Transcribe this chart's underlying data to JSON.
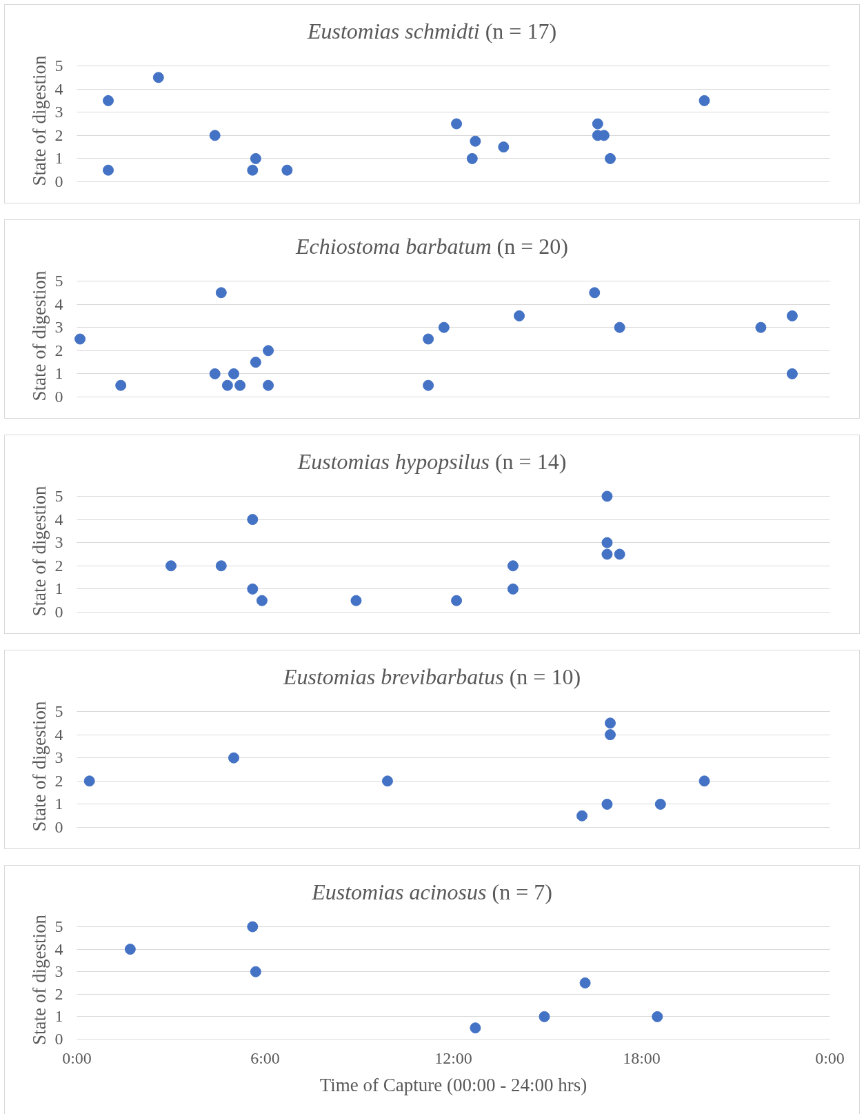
{
  "chart_data": [
    {
      "type": "scatter",
      "title": "Eustomias schmidti (n = 17)",
      "ylabel": "State of digestion",
      "color": "#4472c4",
      "marker": "circle",
      "grid": "y",
      "tick_labels": "y",
      "xlim": [
        0,
        24
      ],
      "ylim": [
        0,
        5
      ],
      "yticks": [
        0,
        1,
        2,
        3,
        4,
        5
      ],
      "x": [
        1.0,
        1.0,
        2.6,
        4.4,
        5.7,
        5.6,
        6.7,
        12.1,
        12.7,
        12.6,
        13.6,
        16.6,
        16.6,
        16.8,
        17.0,
        20.0
      ],
      "values": [
        3.5,
        0.5,
        4.5,
        2,
        1,
        0.5,
        0.5,
        2.5,
        1.75,
        1,
        1.5,
        2.5,
        2,
        2,
        1,
        3.5
      ]
    },
    {
      "type": "scatter",
      "title": "Echiostoma barbatum (n = 20)",
      "ylabel": "State of digestion",
      "color": "#4472c4",
      "marker": "circle",
      "grid": "y",
      "tick_labels": "y",
      "xlim": [
        0,
        24
      ],
      "ylim": [
        0,
        5
      ],
      "yticks": [
        0,
        1,
        2,
        3,
        4,
        5
      ],
      "x": [
        0.1,
        1.4,
        4.6,
        4.4,
        5.0,
        4.8,
        5.2,
        5.7,
        6.1,
        6.1,
        11.2,
        11.2,
        11.7,
        14.1,
        16.5,
        17.3,
        21.8,
        22.8,
        22.8
      ],
      "values": [
        2.5,
        0.5,
        4.5,
        1,
        1,
        0.5,
        0.5,
        1.5,
        2,
        0.5,
        2.5,
        0.5,
        3,
        3.5,
        4.5,
        3,
        3,
        3.5,
        1
      ]
    },
    {
      "type": "scatter",
      "title": "Eustomias hypopsilus (n = 14)",
      "ylabel": "State of digestion",
      "color": "#4472c4",
      "marker": "circle",
      "grid": "y",
      "tick_labels": "y",
      "xlim": [
        0,
        24
      ],
      "ylim": [
        0,
        5
      ],
      "yticks": [
        0,
        1,
        2,
        3,
        4,
        5
      ],
      "x": [
        3.0,
        4.6,
        5.6,
        5.6,
        5.9,
        8.9,
        12.1,
        13.9,
        13.9,
        16.9,
        16.9,
        16.9,
        17.3
      ],
      "values": [
        2,
        2,
        4,
        1,
        0.5,
        0.5,
        0.5,
        2,
        1,
        5,
        3,
        2.5,
        2.5
      ]
    },
    {
      "type": "scatter",
      "title": "Eustomias brevibarbatus (n = 10)",
      "ylabel": "State of digestion",
      "color": "#4472c4",
      "marker": "circle",
      "grid": "y",
      "tick_labels": "y",
      "xlim": [
        0,
        24
      ],
      "ylim": [
        0,
        5
      ],
      "yticks": [
        0,
        1,
        2,
        3,
        4,
        5
      ],
      "x": [
        0.4,
        5.0,
        9.9,
        16.1,
        16.9,
        17.0,
        17.0,
        18.6,
        20.0
      ],
      "values": [
        2,
        3,
        2,
        0.5,
        1,
        4.5,
        4,
        1,
        2
      ]
    },
    {
      "type": "scatter",
      "title": "Eustomias acinosus (n = 7)",
      "ylabel": "State of digestion",
      "xlabel": "Time of Capture (00:00 - 24:00 hrs)",
      "color": "#4472c4",
      "marker": "circle",
      "grid": "y",
      "xlim": [
        0,
        24
      ],
      "ylim": [
        0,
        5
      ],
      "yticks": [
        0,
        1,
        2,
        3,
        4,
        5
      ],
      "xticks": [
        {
          "value": 0,
          "label": "0:00"
        },
        {
          "value": 6,
          "label": "6:00"
        },
        {
          "value": 12,
          "label": "12:00"
        },
        {
          "value": 18,
          "label": "18:00"
        },
        {
          "value": 24,
          "label": "0:00"
        }
      ],
      "x": [
        1.7,
        5.6,
        5.7,
        12.7,
        14.9,
        16.2,
        18.5
      ],
      "values": [
        4,
        5,
        3,
        0.5,
        1,
        2.5,
        1
      ]
    }
  ]
}
